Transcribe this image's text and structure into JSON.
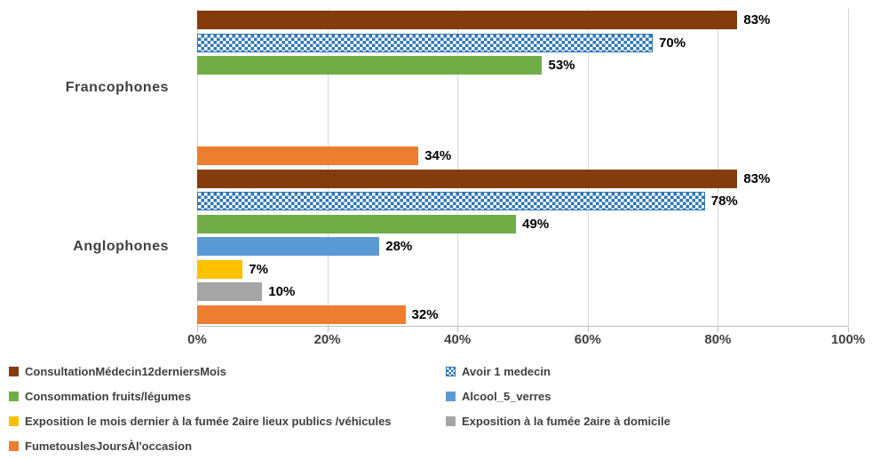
{
  "chart_data": {
    "type": "bar",
    "orientation": "horizontal",
    "title": "",
    "categories": [
      "Francophones",
      "Anglophones"
    ],
    "series": [
      {
        "name": "ConsultationMédecin12derniersMois",
        "color": "#843C0C",
        "pattern": "solid",
        "values": [
          83,
          83
        ]
      },
      {
        "name": "Avoir 1 medecin",
        "color": "#2E75B6",
        "pattern": "checker",
        "values": [
          70,
          78
        ]
      },
      {
        "name": "Consommation fruits/légumes",
        "color": "#70AD47",
        "pattern": "solid",
        "values": [
          53,
          49
        ]
      },
      {
        "name": "Alcool_5_verres",
        "color": "#5B9BD5",
        "pattern": "solid",
        "values": [
          null,
          28
        ]
      },
      {
        "name": "Exposition le mois dernier à la fumée 2aire lieux publics /véhicules",
        "color": "#FFC000",
        "pattern": "solid",
        "values": [
          null,
          7
        ]
      },
      {
        "name": "Exposition à la fumée 2aire à domicile",
        "color": "#A5A5A5",
        "pattern": "solid",
        "values": [
          null,
          10
        ]
      },
      {
        "name": "FumetouslesJoursÀl'occasion",
        "color": "#ED7D31",
        "pattern": "solid",
        "values": [
          34,
          32
        ]
      }
    ],
    "xlim": [
      0,
      100
    ],
    "xtick_values": [
      0,
      20,
      40,
      60,
      80,
      100
    ],
    "xtick_labels": [
      "0%",
      "20%",
      "40%",
      "60%",
      "80%",
      "100%"
    ],
    "data_labels": {
      "Francophones": [
        "83%",
        "70%",
        "53%",
        null,
        null,
        null,
        "34%"
      ],
      "Anglophones": [
        "83%",
        "78%",
        "49%",
        "28%",
        "7%",
        "10%",
        "32%"
      ]
    },
    "grid": true,
    "legend_position": "bottom",
    "legend_columns": 2
  },
  "colors": {
    "axis_text": "#404040",
    "data_label_text": "#000000",
    "gridline": "#D6D6D6",
    "axis_line": "#BFBFBF",
    "background": "#FFFFFF",
    "checker_blue": "#2E75B6"
  }
}
